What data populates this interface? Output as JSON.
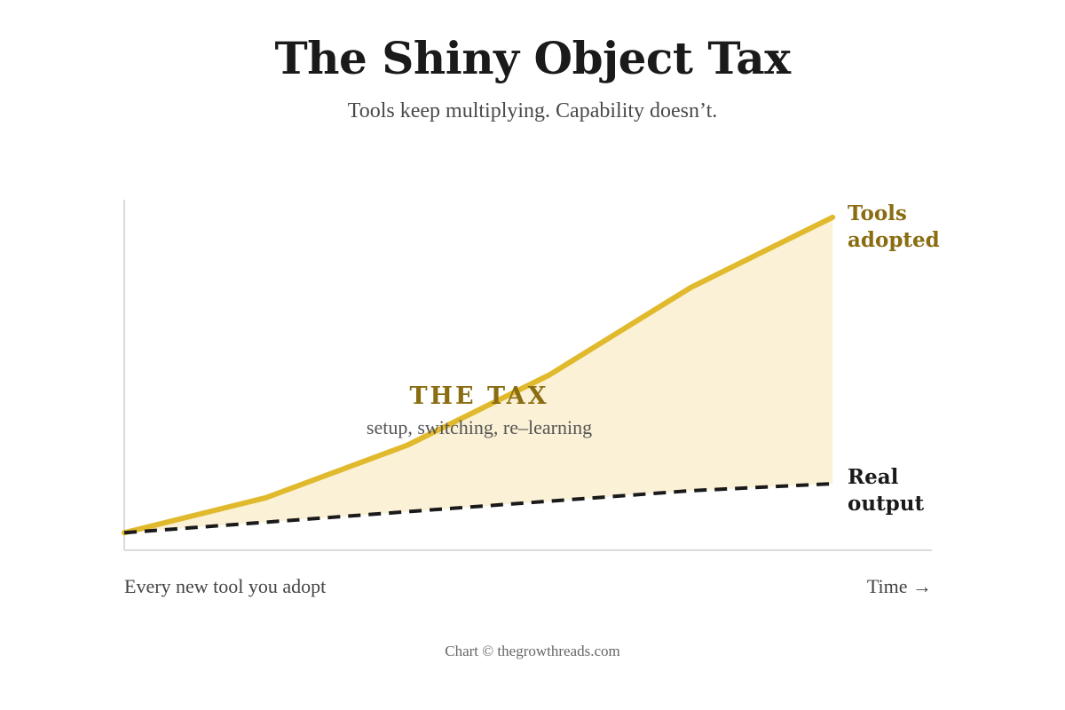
{
  "title": "The Shiny Object Tax",
  "subtitle": "Tools keep multiplying. Capability doesn’t.",
  "footer": "Chart © thegrowthreads.com",
  "colors": {
    "tools_line": "#e0b92c",
    "tax_fill": "#fbf1d6",
    "output_line": "#1a1a1a",
    "accent_text": "#8a6d12"
  },
  "chart_data": {
    "type": "area",
    "xlabel": "Every new tool you adopt",
    "xlabel_right": "Time →",
    "ylabel": "",
    "x": [
      0,
      1,
      2,
      3,
      4,
      5
    ],
    "xlim": [
      0,
      5.7
    ],
    "ylim": [
      0,
      10
    ],
    "grid": false,
    "series": [
      {
        "name": "Tools adopted",
        "name_lines": [
          "Tools",
          "adopted"
        ],
        "style": "solid",
        "values": [
          0.5,
          1.5,
          3.0,
          5.0,
          7.5,
          9.5
        ]
      },
      {
        "name": "Real output",
        "name_lines": [
          "Real",
          "output"
        ],
        "style": "dashed",
        "values": [
          0.5,
          0.8,
          1.1,
          1.4,
          1.7,
          1.9
        ]
      }
    ],
    "annotations": [
      {
        "text": "THE TAX",
        "sub": "setup, switching, re–learning"
      }
    ]
  }
}
